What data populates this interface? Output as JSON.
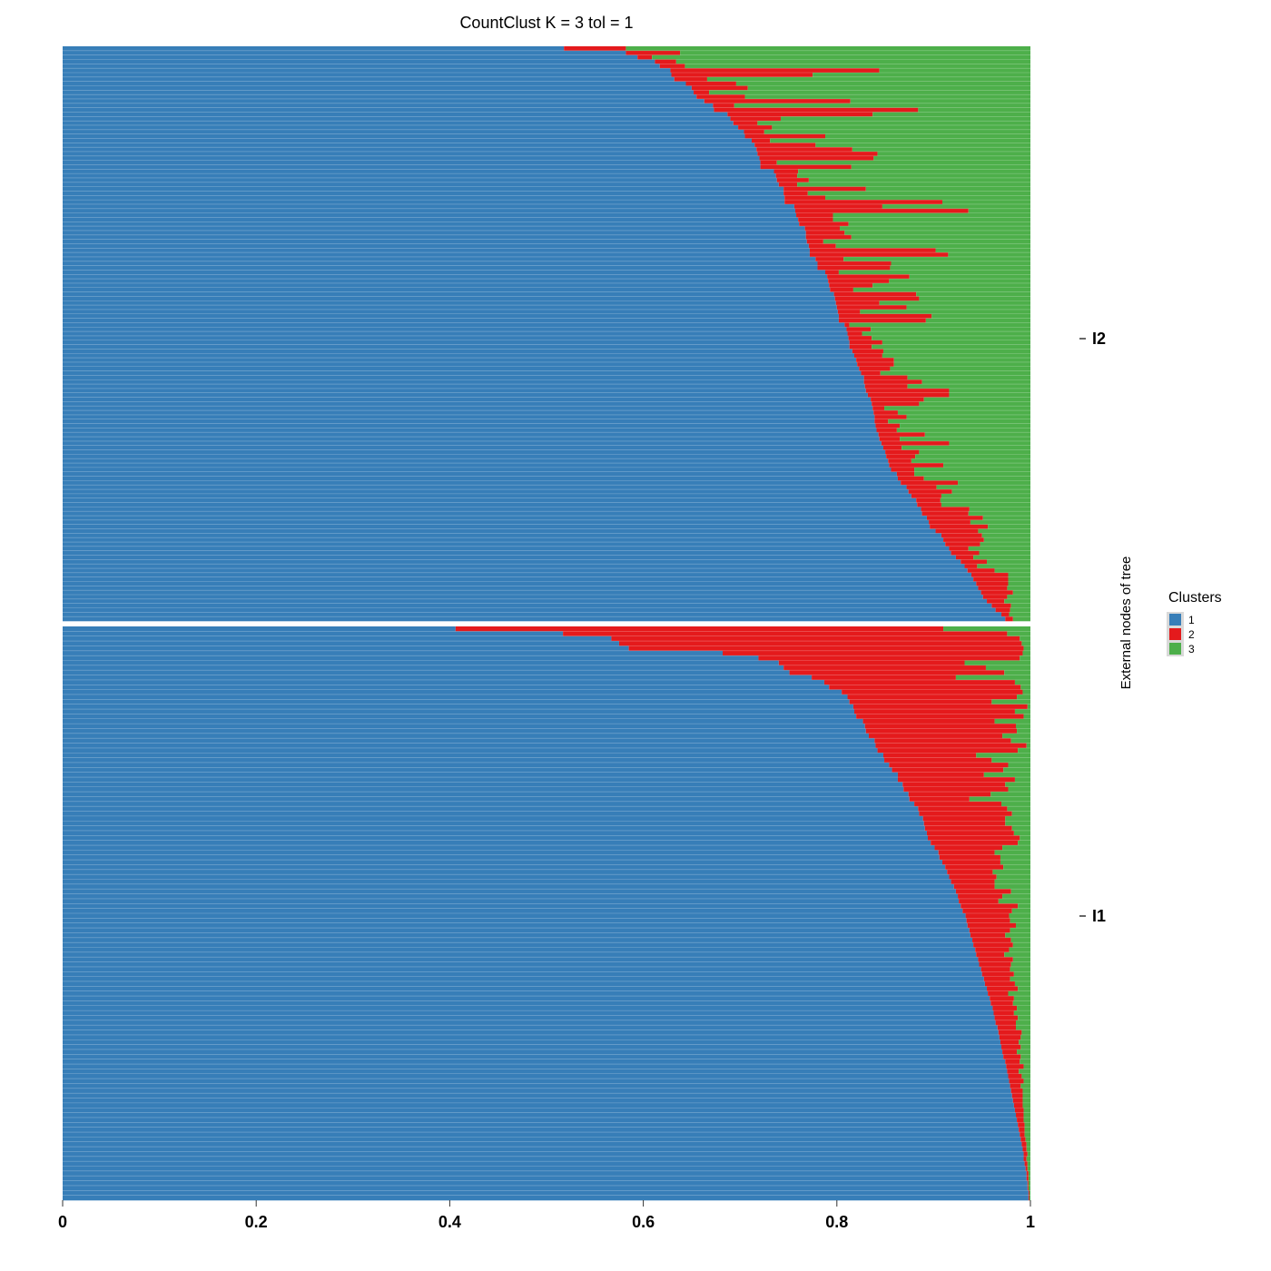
{
  "chart_data": {
    "type": "bar",
    "orientation": "horizontal-stacked",
    "title": "CountClust K =  3 tol =  1",
    "xlabel": "",
    "ylabel": "External nodes of tree",
    "xlim": [
      0,
      1
    ],
    "x_ticks": [
      "0",
      "0.2",
      "0.4",
      "0.6",
      "0.8",
      "1"
    ],
    "grid": false,
    "legend_position": "right",
    "legend": {
      "title": "Clusters",
      "entries": [
        {
          "label": "1",
          "color": "#377EB8"
        },
        {
          "label": "2",
          "color": "#E41A1C"
        },
        {
          "label": "3",
          "color": "#4DAF4A"
        }
      ]
    },
    "facets": [
      {
        "label": "I2",
        "cluster1": [
          0.518,
          0.582,
          0.594,
          0.612,
          0.617,
          0.628,
          0.629,
          0.632,
          0.644,
          0.65,
          0.652,
          0.655,
          0.663,
          0.672,
          0.673,
          0.687,
          0.69,
          0.693,
          0.698,
          0.704,
          0.705,
          0.712,
          0.715,
          0.717,
          0.718,
          0.72,
          0.721,
          0.721,
          0.735,
          0.737,
          0.738,
          0.74,
          0.745,
          0.745,
          0.746,
          0.746,
          0.756,
          0.757,
          0.758,
          0.76,
          0.761,
          0.767,
          0.768,
          0.768,
          0.769,
          0.771,
          0.772,
          0.772,
          0.778,
          0.78,
          0.78,
          0.788,
          0.79,
          0.791,
          0.792,
          0.793,
          0.797,
          0.798,
          0.799,
          0.8,
          0.801,
          0.802,
          0.802,
          0.808,
          0.81,
          0.811,
          0.812,
          0.813,
          0.813,
          0.816,
          0.818,
          0.82,
          0.821,
          0.823,
          0.825,
          0.828,
          0.828,
          0.829,
          0.83,
          0.832,
          0.835,
          0.836,
          0.837,
          0.838,
          0.839,
          0.839,
          0.84,
          0.841,
          0.843,
          0.844,
          0.846,
          0.848,
          0.85,
          0.851,
          0.853,
          0.854,
          0.856,
          0.862,
          0.863,
          0.866,
          0.872,
          0.874,
          0.877,
          0.882,
          0.883,
          0.887,
          0.888,
          0.893,
          0.895,
          0.896,
          0.902,
          0.908,
          0.91,
          0.912,
          0.916,
          0.918,
          0.923,
          0.928,
          0.932,
          0.935,
          0.939,
          0.941,
          0.944,
          0.946,
          0.949,
          0.951,
          0.955,
          0.96,
          0.964,
          0.97,
          0.974
        ],
        "cluster2": [
          0.064,
          0.056,
          0.015,
          0.022,
          0.026,
          0.216,
          0.146,
          0.034,
          0.052,
          0.058,
          0.016,
          0.05,
          0.151,
          0.022,
          0.211,
          0.15,
          0.052,
          0.025,
          0.035,
          0.021,
          0.083,
          0.019,
          0.063,
          0.099,
          0.124,
          0.118,
          0.017,
          0.094,
          0.025,
          0.022,
          0.033,
          0.019,
          0.085,
          0.025,
          0.042,
          0.163,
          0.091,
          0.179,
          0.038,
          0.036,
          0.051,
          0.036,
          0.04,
          0.047,
          0.017,
          0.028,
          0.13,
          0.143,
          0.029,
          0.076,
          0.075,
          0.014,
          0.085,
          0.063,
          0.045,
          0.024,
          0.085,
          0.087,
          0.045,
          0.072,
          0.023,
          0.096,
          0.09,
          0.005,
          0.025,
          0.015,
          0.024,
          0.034,
          0.023,
          0.032,
          0.029,
          0.039,
          0.038,
          0.032,
          0.02,
          0.045,
          0.06,
          0.044,
          0.086,
          0.084,
          0.055,
          0.049,
          0.012,
          0.025,
          0.033,
          0.014,
          0.025,
          0.021,
          0.048,
          0.021,
          0.07,
          0.019,
          0.035,
          0.03,
          0.024,
          0.056,
          0.024,
          0.018,
          0.027,
          0.059,
          0.031,
          0.045,
          0.031,
          0.025,
          0.025,
          0.05,
          0.048,
          0.058,
          0.043,
          0.06,
          0.044,
          0.042,
          0.042,
          0.036,
          0.02,
          0.029,
          0.018,
          0.027,
          0.013,
          0.028,
          0.038,
          0.036,
          0.033,
          0.03,
          0.033,
          0.025,
          0.018,
          0.02,
          0.015,
          0.008,
          0.008
        ],
        "cluster3": [
          0.418,
          0.362,
          0.391,
          0.366,
          0.357,
          0.156,
          0.225,
          0.334,
          0.304,
          0.292,
          0.332,
          0.295,
          0.186,
          0.306,
          0.116,
          0.163,
          0.258,
          0.282,
          0.267,
          0.275,
          0.212,
          0.269,
          0.222,
          0.184,
          0.158,
          0.162,
          0.262,
          0.185,
          0.24,
          0.241,
          0.229,
          0.241,
          0.17,
          0.23,
          0.212,
          0.091,
          0.153,
          0.064,
          0.204,
          0.204,
          0.188,
          0.197,
          0.192,
          0.185,
          0.214,
          0.201,
          0.098,
          0.085,
          0.193,
          0.144,
          0.145,
          0.198,
          0.125,
          0.146,
          0.163,
          0.183,
          0.118,
          0.115,
          0.156,
          0.128,
          0.176,
          0.102,
          0.108,
          0.187,
          0.165,
          0.174,
          0.164,
          0.153,
          0.164,
          0.152,
          0.153,
          0.141,
          0.141,
          0.145,
          0.155,
          0.127,
          0.112,
          0.127,
          0.084,
          0.084,
          0.11,
          0.115,
          0.151,
          0.137,
          0.128,
          0.147,
          0.135,
          0.138,
          0.109,
          0.135,
          0.084,
          0.133,
          0.115,
          0.119,
          0.123,
          0.09,
          0.12,
          0.12,
          0.11,
          0.075,
          0.097,
          0.081,
          0.092,
          0.093,
          0.092,
          0.063,
          0.064,
          0.049,
          0.062,
          0.044,
          0.054,
          0.05,
          0.048,
          0.052,
          0.064,
          0.053,
          0.059,
          0.045,
          0.055,
          0.037,
          0.023,
          0.023,
          0.023,
          0.024,
          0.018,
          0.024,
          0.027,
          0.02,
          0.021,
          0.022,
          0.018
        ]
      },
      {
        "label": "I1",
        "cluster1": [
          0.406,
          0.517,
          0.567,
          0.575,
          0.585,
          0.682,
          0.719,
          0.74,
          0.745,
          0.751,
          0.774,
          0.787,
          0.792,
          0.805,
          0.811,
          0.813,
          0.817,
          0.818,
          0.82,
          0.827,
          0.829,
          0.83,
          0.833,
          0.839,
          0.84,
          0.842,
          0.848,
          0.849,
          0.854,
          0.857,
          0.863,
          0.863,
          0.868,
          0.869,
          0.874,
          0.875,
          0.88,
          0.884,
          0.885,
          0.889,
          0.89,
          0.891,
          0.893,
          0.894,
          0.897,
          0.901,
          0.905,
          0.906,
          0.909,
          0.912,
          0.914,
          0.916,
          0.918,
          0.921,
          0.923,
          0.925,
          0.926,
          0.928,
          0.93,
          0.933,
          0.934,
          0.935,
          0.937,
          0.938,
          0.94,
          0.941,
          0.943,
          0.944,
          0.946,
          0.947,
          0.949,
          0.95,
          0.952,
          0.953,
          0.955,
          0.956,
          0.958,
          0.959,
          0.961,
          0.962,
          0.963,
          0.964,
          0.966,
          0.967,
          0.968,
          0.969,
          0.97,
          0.971,
          0.972,
          0.974,
          0.975,
          0.976,
          0.977,
          0.978,
          0.979,
          0.98,
          0.981,
          0.982,
          0.983,
          0.984,
          0.985,
          0.986,
          0.987,
          0.988,
          0.989,
          0.99,
          0.991,
          0.992,
          0.993,
          0.993,
          0.994,
          0.995,
          0.996,
          0.996,
          0.997,
          0.997,
          0.998,
          0.998
        ],
        "cluster2": [
          0.504,
          0.459,
          0.422,
          0.416,
          0.408,
          0.31,
          0.27,
          0.192,
          0.209,
          0.222,
          0.149,
          0.197,
          0.198,
          0.187,
          0.175,
          0.147,
          0.18,
          0.166,
          0.173,
          0.136,
          0.156,
          0.156,
          0.138,
          0.141,
          0.156,
          0.145,
          0.096,
          0.111,
          0.123,
          0.115,
          0.089,
          0.121,
          0.106,
          0.108,
          0.085,
          0.062,
          0.09,
          0.092,
          0.096,
          0.085,
          0.084,
          0.09,
          0.09,
          0.095,
          0.09,
          0.07,
          0.058,
          0.063,
          0.06,
          0.06,
          0.047,
          0.049,
          0.045,
          0.042,
          0.057,
          0.046,
          0.041,
          0.059,
          0.051,
          0.045,
          0.045,
          0.05,
          0.042,
          0.036,
          0.04,
          0.041,
          0.035,
          0.029,
          0.036,
          0.033,
          0.03,
          0.033,
          0.027,
          0.031,
          0.032,
          0.021,
          0.025,
          0.023,
          0.025,
          0.021,
          0.024,
          0.021,
          0.019,
          0.024,
          0.022,
          0.019,
          0.02,
          0.015,
          0.018,
          0.015,
          0.018,
          0.012,
          0.014,
          0.015,
          0.011,
          0.012,
          0.011,
          0.01,
          0.009,
          0.009,
          0.008,
          0.007,
          0.007,
          0.006,
          0.005,
          0.005,
          0.005,
          0.004,
          0.004,
          0.003,
          0.003,
          0.002,
          0.002,
          0.002,
          0.001,
          0.001,
          0.001,
          0.001
        ],
        "cluster3": [
          0.09,
          0.024,
          0.011,
          0.009,
          0.007,
          0.008,
          0.011,
          0.068,
          0.046,
          0.027,
          0.077,
          0.016,
          0.01,
          0.008,
          0.014,
          0.04,
          0.003,
          0.016,
          0.007,
          0.037,
          0.015,
          0.014,
          0.029,
          0.02,
          0.004,
          0.013,
          0.056,
          0.04,
          0.023,
          0.028,
          0.048,
          0.016,
          0.026,
          0.023,
          0.041,
          0.063,
          0.03,
          0.024,
          0.019,
          0.026,
          0.026,
          0.019,
          0.017,
          0.011,
          0.013,
          0.029,
          0.037,
          0.031,
          0.031,
          0.028,
          0.039,
          0.035,
          0.037,
          0.037,
          0.02,
          0.029,
          0.033,
          0.013,
          0.019,
          0.022,
          0.021,
          0.015,
          0.021,
          0.026,
          0.02,
          0.018,
          0.022,
          0.027,
          0.018,
          0.02,
          0.021,
          0.017,
          0.021,
          0.016,
          0.013,
          0.023,
          0.017,
          0.018,
          0.014,
          0.017,
          0.013,
          0.015,
          0.015,
          0.009,
          0.01,
          0.012,
          0.01,
          0.014,
          0.01,
          0.011,
          0.007,
          0.012,
          0.009,
          0.007,
          0.01,
          0.008,
          0.008,
          0.008,
          0.008,
          0.007,
          0.007,
          0.007,
          0.006,
          0.006,
          0.006,
          0.005,
          0.004,
          0.004,
          0.003,
          0.004,
          0.003,
          0.003,
          0.002,
          0.002,
          0.002,
          0.002,
          0.001,
          0.001
        ]
      }
    ]
  }
}
